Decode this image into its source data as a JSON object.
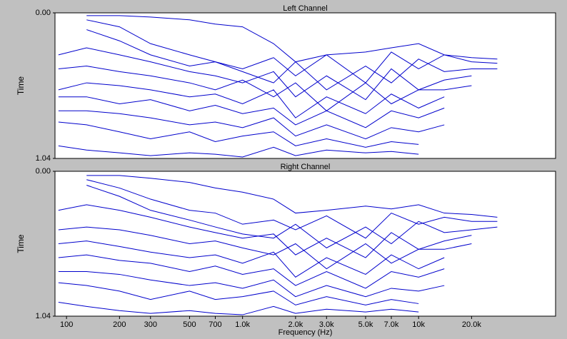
{
  "chart_data": [
    {
      "type": "waterfall",
      "title": "Left Channel",
      "ylabel": "Time",
      "xlog": true,
      "xlim": [
        86,
        60000
      ],
      "ylim": [
        0,
        1.04
      ],
      "yticks": [
        {
          "value": 0,
          "label": "0.00"
        },
        {
          "value": 1.04,
          "label": "1.04"
        }
      ],
      "x": [
        90,
        130,
        200,
        300,
        500,
        700,
        1000,
        1500,
        2000,
        3000,
        5000,
        7000,
        10000,
        14000,
        20000,
        28000
      ],
      "color": "#0000cc",
      "series": [
        {
          "values": [
            null,
            0.02,
            0.02,
            0.03,
            0.05,
            0.08,
            0.1,
            0.22,
            0.35,
            0.3,
            0.28,
            0.25,
            0.22,
            0.3,
            0.32,
            0.33
          ]
        },
        {
          "values": [
            null,
            0.05,
            0.1,
            0.22,
            0.3,
            0.35,
            0.4,
            0.32,
            0.45,
            0.3,
            0.5,
            0.28,
            0.4,
            0.3,
            0.35,
            0.36
          ]
        },
        {
          "values": [
            null,
            0.12,
            0.2,
            0.3,
            0.38,
            0.35,
            0.42,
            0.5,
            0.35,
            0.55,
            0.38,
            0.5,
            0.33,
            0.42,
            0.4,
            0.4
          ]
        },
        {
          "values": [
            0.3,
            0.25,
            0.3,
            0.35,
            0.42,
            0.45,
            0.5,
            0.42,
            0.6,
            0.45,
            0.62,
            0.4,
            0.55,
            0.48,
            0.45,
            null
          ]
        },
        {
          "values": [
            0.4,
            0.38,
            0.42,
            0.45,
            0.5,
            0.55,
            0.48,
            0.6,
            0.5,
            0.7,
            0.5,
            0.65,
            0.55,
            0.55,
            0.52,
            null
          ]
        },
        {
          "values": [
            0.55,
            0.5,
            0.52,
            0.55,
            0.6,
            0.58,
            0.65,
            0.55,
            0.75,
            0.6,
            0.72,
            0.58,
            0.68,
            0.6,
            null,
            null
          ]
        },
        {
          "values": [
            0.6,
            0.6,
            0.65,
            0.62,
            0.7,
            0.66,
            0.72,
            0.68,
            0.8,
            0.7,
            0.82,
            0.7,
            0.75,
            0.68,
            null,
            null
          ]
        },
        {
          "values": [
            0.7,
            0.7,
            0.72,
            0.75,
            0.8,
            0.78,
            0.82,
            0.75,
            0.88,
            0.8,
            0.9,
            0.82,
            0.85,
            0.8,
            null,
            null
          ]
        },
        {
          "values": [
            0.78,
            0.8,
            0.85,
            0.9,
            0.85,
            0.92,
            0.88,
            0.85,
            0.95,
            0.9,
            0.96,
            0.92,
            0.94,
            null,
            null,
            null
          ]
        },
        {
          "values": [
            0.95,
            0.98,
            1.0,
            1.02,
            1.0,
            1.01,
            1.03,
            0.96,
            1.02,
            0.98,
            1.0,
            0.99,
            1.01,
            null,
            null,
            null
          ]
        }
      ]
    },
    {
      "type": "waterfall",
      "title": "Right Channel",
      "ylabel": "Time",
      "xlabel": "Frequency (Hz)",
      "xlog": true,
      "xlim": [
        86,
        60000
      ],
      "ylim": [
        0,
        1.04
      ],
      "yticks": [
        {
          "value": 0,
          "label": "0.00"
        },
        {
          "value": 1.04,
          "label": "1.04"
        }
      ],
      "xticks": [
        {
          "value": 100,
          "label": "100"
        },
        200,
        300,
        500,
        700,
        {
          "value": 1000,
          "label": "1.0k"
        },
        {
          "value": 2000,
          "label": "2.0k"
        },
        {
          "value": 3000,
          "label": "3.0k"
        },
        {
          "value": 5000,
          "label": "5.0k"
        },
        {
          "value": 7000,
          "label": "7.0k"
        },
        {
          "value": 10000,
          "label": "10k"
        },
        {
          "value": 20000,
          "label": "20.0k"
        }
      ],
      "x": [
        90,
        130,
        200,
        300,
        500,
        700,
        1000,
        1500,
        2000,
        3000,
        5000,
        7000,
        10000,
        14000,
        20000,
        28000
      ],
      "color": "#0000cc",
      "series": [
        {
          "values": [
            null,
            0.03,
            0.03,
            0.05,
            0.08,
            0.12,
            0.15,
            0.2,
            0.3,
            0.28,
            0.25,
            0.27,
            0.24,
            0.3,
            0.31,
            0.33
          ]
        },
        {
          "values": [
            null,
            0.06,
            0.12,
            0.2,
            0.28,
            0.3,
            0.38,
            0.35,
            0.42,
            0.32,
            0.48,
            0.3,
            0.38,
            0.33,
            0.36,
            0.36
          ]
        },
        {
          "values": [
            null,
            0.1,
            0.18,
            0.28,
            0.35,
            0.4,
            0.45,
            0.48,
            0.38,
            0.55,
            0.4,
            0.52,
            0.36,
            0.44,
            0.42,
            0.4
          ]
        },
        {
          "values": [
            0.28,
            0.24,
            0.28,
            0.33,
            0.4,
            0.44,
            0.48,
            0.45,
            0.6,
            0.48,
            0.62,
            0.44,
            0.56,
            0.5,
            0.46,
            null
          ]
        },
        {
          "values": [
            0.42,
            0.4,
            0.42,
            0.46,
            0.52,
            0.5,
            0.55,
            0.6,
            0.52,
            0.7,
            0.52,
            0.66,
            0.56,
            0.56,
            0.52,
            null
          ]
        },
        {
          "values": [
            0.52,
            0.5,
            0.54,
            0.58,
            0.62,
            0.6,
            0.66,
            0.58,
            0.76,
            0.62,
            0.74,
            0.6,
            0.7,
            0.62,
            null,
            null
          ]
        },
        {
          "values": [
            0.62,
            0.6,
            0.64,
            0.66,
            0.72,
            0.68,
            0.74,
            0.7,
            0.82,
            0.72,
            0.84,
            0.72,
            0.76,
            0.7,
            null,
            null
          ]
        },
        {
          "values": [
            0.72,
            0.72,
            0.74,
            0.78,
            0.82,
            0.8,
            0.84,
            0.78,
            0.9,
            0.82,
            0.9,
            0.84,
            0.86,
            0.82,
            null,
            null
          ]
        },
        {
          "values": [
            0.8,
            0.82,
            0.86,
            0.92,
            0.86,
            0.92,
            0.9,
            0.86,
            0.96,
            0.9,
            0.96,
            0.92,
            0.95,
            null,
            null,
            null
          ]
        },
        {
          "values": [
            0.94,
            0.97,
            1.0,
            1.02,
            1.0,
            1.02,
            1.03,
            0.97,
            1.02,
            0.99,
            1.01,
            0.99,
            1.01,
            null,
            null,
            null
          ]
        }
      ]
    }
  ]
}
